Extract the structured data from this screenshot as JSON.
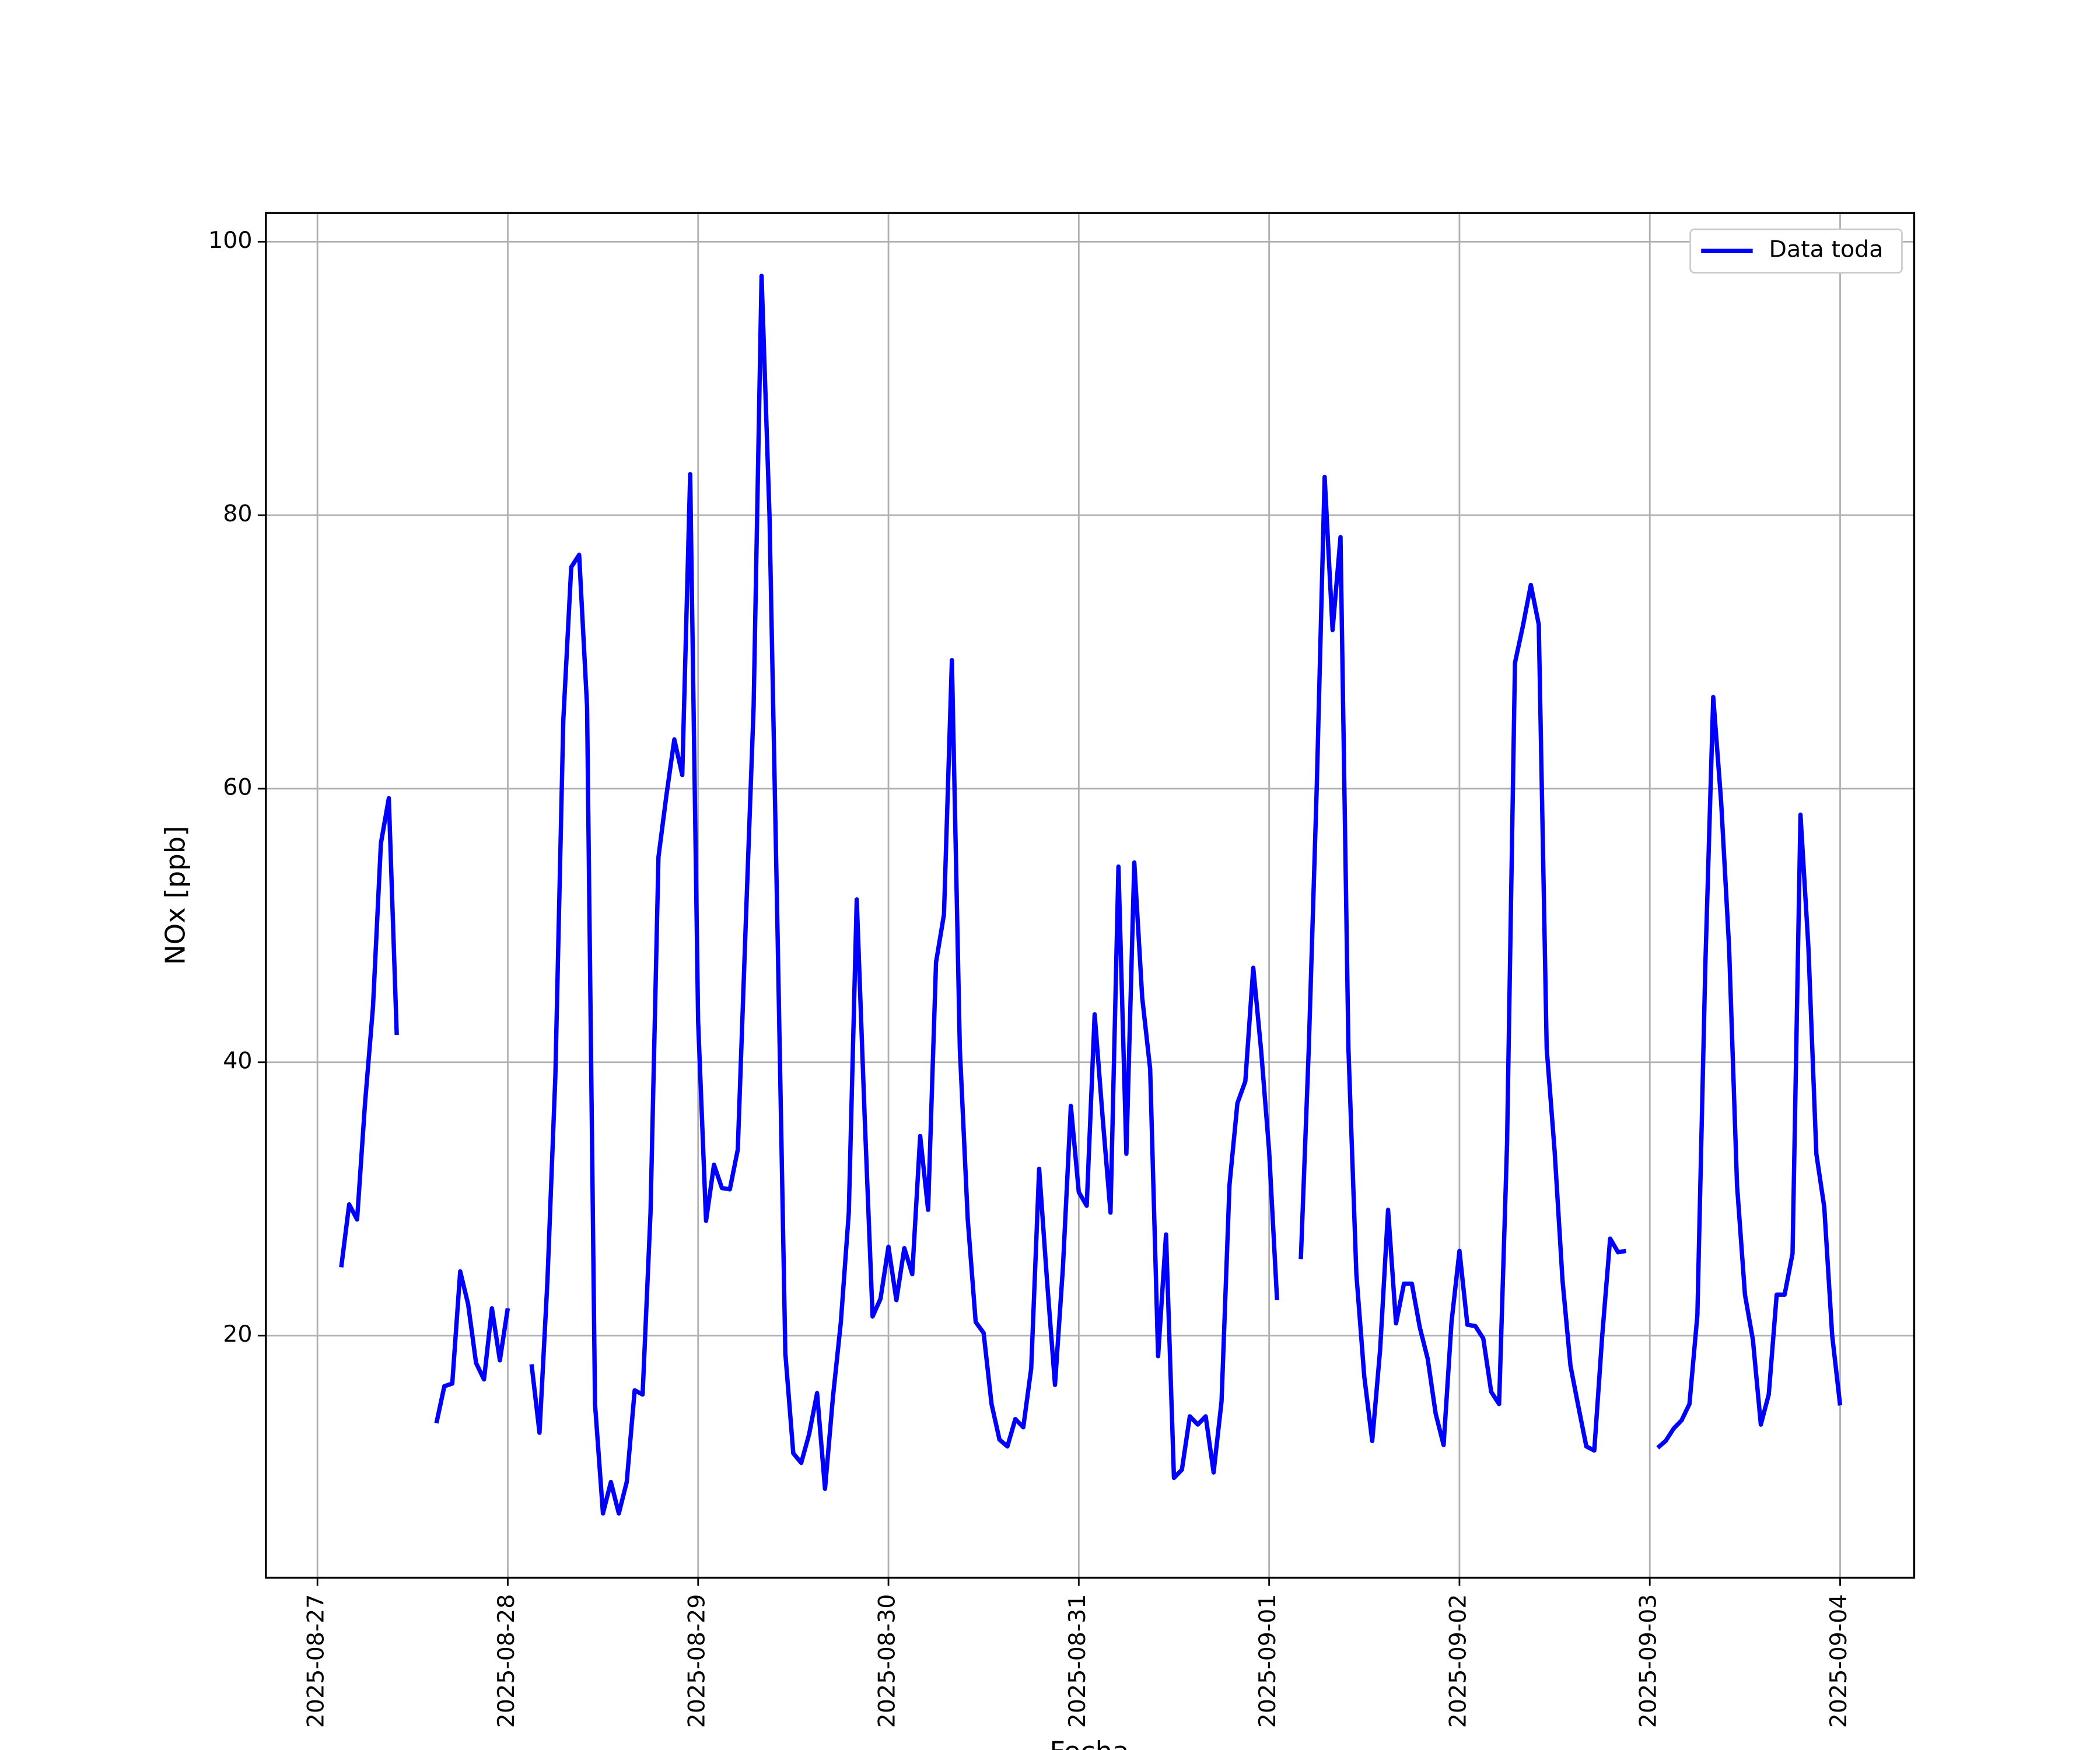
{
  "chart_data": {
    "type": "line",
    "xlabel": "Fecha",
    "ylabel": "NOx [ppb]",
    "xlim": [
      "2025-08-26 17:30",
      "2025-09-04 09:20"
    ],
    "xticks": [
      "2025-08-27",
      "2025-08-28",
      "2025-08-29",
      "2025-08-30",
      "2025-08-31",
      "2025-09-01",
      "2025-09-02",
      "2025-09-03",
      "2025-09-04"
    ],
    "ylim": [
      2.3,
      102.1
    ],
    "yticks": [
      20,
      40,
      60,
      80,
      100
    ],
    "grid": true,
    "legend": "upper right",
    "x": [
      "2025-08-27 03:00",
      "2025-08-27 04:00",
      "2025-08-27 05:00",
      "2025-08-27 06:00",
      "2025-08-27 07:00",
      "2025-08-27 08:00",
      "2025-08-27 09:00",
      "2025-08-27 10:00",
      "2025-08-27 11:00",
      "2025-08-27 12:00",
      "2025-08-27 13:00",
      "2025-08-27 14:00",
      "2025-08-27 15:00",
      "2025-08-27 16:00",
      "2025-08-27 17:00",
      "2025-08-27 18:00",
      "2025-08-27 19:00",
      "2025-08-27 20:00",
      "2025-08-27 21:00",
      "2025-08-27 22:00",
      "2025-08-27 23:00",
      "2025-08-28 00:00",
      "2025-08-28 01:00",
      "2025-08-28 02:00",
      "2025-08-28 03:00",
      "2025-08-28 04:00",
      "2025-08-28 05:00",
      "2025-08-28 06:00",
      "2025-08-28 07:00",
      "2025-08-28 08:00",
      "2025-08-28 09:00",
      "2025-08-28 10:00",
      "2025-08-28 11:00",
      "2025-08-28 12:00",
      "2025-08-28 13:00",
      "2025-08-28 14:00",
      "2025-08-28 15:00",
      "2025-08-28 16:00",
      "2025-08-28 17:00",
      "2025-08-28 18:00",
      "2025-08-28 19:00",
      "2025-08-28 20:00",
      "2025-08-28 21:00",
      "2025-08-28 22:00",
      "2025-08-28 23:00",
      "2025-08-29 00:00",
      "2025-08-29 01:00",
      "2025-08-29 02:00",
      "2025-08-29 03:00",
      "2025-08-29 04:00",
      "2025-08-29 05:00",
      "2025-08-29 06:00",
      "2025-08-29 07:00",
      "2025-08-29 08:00",
      "2025-08-29 09:00",
      "2025-08-29 10:00",
      "2025-08-29 11:00",
      "2025-08-29 12:00",
      "2025-08-29 13:00",
      "2025-08-29 14:00",
      "2025-08-29 15:00",
      "2025-08-29 16:00",
      "2025-08-29 17:00",
      "2025-08-29 18:00",
      "2025-08-29 19:00",
      "2025-08-29 20:00",
      "2025-08-29 21:00",
      "2025-08-29 22:00",
      "2025-08-29 23:00",
      "2025-08-30 00:00",
      "2025-08-30 01:00",
      "2025-08-30 02:00",
      "2025-08-30 03:00",
      "2025-08-30 04:00",
      "2025-08-30 05:00",
      "2025-08-30 06:00",
      "2025-08-30 07:00",
      "2025-08-30 08:00",
      "2025-08-30 09:00",
      "2025-08-30 10:00",
      "2025-08-30 11:00",
      "2025-08-30 12:00",
      "2025-08-30 13:00",
      "2025-08-30 14:00",
      "2025-08-30 15:00",
      "2025-08-30 16:00",
      "2025-08-30 17:00",
      "2025-08-30 18:00",
      "2025-08-30 19:00",
      "2025-08-30 20:00",
      "2025-08-30 21:00",
      "2025-08-30 22:00",
      "2025-08-30 23:00",
      "2025-08-31 00:00",
      "2025-08-31 01:00",
      "2025-08-31 02:00",
      "2025-08-31 03:00",
      "2025-08-31 04:00",
      "2025-08-31 05:00",
      "2025-08-31 06:00",
      "2025-08-31 07:00",
      "2025-08-31 08:00",
      "2025-08-31 09:00",
      "2025-08-31 10:00",
      "2025-08-31 11:00",
      "2025-08-31 12:00",
      "2025-08-31 13:00",
      "2025-08-31 14:00",
      "2025-08-31 15:00",
      "2025-08-31 16:00",
      "2025-08-31 17:00",
      "2025-08-31 18:00",
      "2025-08-31 19:00",
      "2025-08-31 20:00",
      "2025-08-31 21:00",
      "2025-08-31 22:00",
      "2025-08-31 23:00",
      "2025-09-01 00:00",
      "2025-09-01 01:00",
      "2025-09-01 02:00",
      "2025-09-01 03:00",
      "2025-09-01 04:00",
      "2025-09-01 05:00",
      "2025-09-01 06:00",
      "2025-09-01 07:00",
      "2025-09-01 08:00",
      "2025-09-01 09:00",
      "2025-09-01 10:00",
      "2025-09-01 11:00",
      "2025-09-01 12:00",
      "2025-09-01 13:00",
      "2025-09-01 14:00",
      "2025-09-01 15:00",
      "2025-09-01 16:00",
      "2025-09-01 17:00",
      "2025-09-01 18:00",
      "2025-09-01 19:00",
      "2025-09-01 20:00",
      "2025-09-01 21:00",
      "2025-09-01 22:00",
      "2025-09-01 23:00",
      "2025-09-02 00:00",
      "2025-09-02 01:00",
      "2025-09-02 02:00",
      "2025-09-02 03:00",
      "2025-09-02 04:00",
      "2025-09-02 05:00",
      "2025-09-02 06:00",
      "2025-09-02 07:00",
      "2025-09-02 08:00",
      "2025-09-02 09:00",
      "2025-09-02 10:00",
      "2025-09-02 11:00",
      "2025-09-02 12:00",
      "2025-09-02 13:00",
      "2025-09-02 14:00",
      "2025-09-02 15:00",
      "2025-09-02 16:00",
      "2025-09-02 17:00",
      "2025-09-02 18:00",
      "2025-09-02 19:00",
      "2025-09-02 20:00",
      "2025-09-02 21:00",
      "2025-09-02 22:00",
      "2025-09-02 23:00",
      "2025-09-03 00:00",
      "2025-09-03 01:00",
      "2025-09-03 02:00",
      "2025-09-03 03:00",
      "2025-09-03 04:00",
      "2025-09-03 05:00",
      "2025-09-03 06:00",
      "2025-09-03 07:00",
      "2025-09-03 08:00",
      "2025-09-03 09:00",
      "2025-09-03 10:00",
      "2025-09-03 11:00",
      "2025-09-03 12:00",
      "2025-09-03 13:00",
      "2025-09-03 14:00",
      "2025-09-03 15:00",
      "2025-09-03 16:00",
      "2025-09-03 17:00",
      "2025-09-03 18:00",
      "2025-09-03 19:00",
      "2025-09-03 20:00",
      "2025-09-03 21:00",
      "2025-09-03 22:00",
      "2025-09-03 23:00",
      "2025-09-04 00:00"
    ],
    "series": [
      {
        "name": "Data toda",
        "color": "#0000ff",
        "values": [
          25,
          29.6,
          28.5,
          37,
          44,
          56,
          59.3,
          42,
          null,
          null,
          null,
          null,
          13.6,
          16.3,
          16.5,
          24.7,
          22.3,
          18,
          16.8,
          22,
          18.2,
          22,
          null,
          null,
          17.9,
          12.9,
          24,
          39,
          65,
          76.2,
          77.1,
          66,
          15,
          7,
          9.3,
          7,
          9.3,
          16,
          15.7,
          29,
          55,
          59.5,
          63.6,
          61,
          83,
          43,
          28.4,
          32.5,
          30.8,
          30.7,
          33.6,
          50,
          66,
          97.5,
          80,
          50,
          18.7,
          11.4,
          10.7,
          12.8,
          15.8,
          8.8,
          15.5,
          21,
          29,
          51.9,
          36,
          21.4,
          22.7,
          26.5,
          22.6,
          26.4,
          24.5,
          34.6,
          29.2,
          47.3,
          50.8,
          69.4,
          41,
          28.5,
          21,
          20.2,
          15,
          12.4,
          11.9,
          13.9,
          13.3,
          17.6,
          32.2,
          24,
          16.4,
          25,
          36.8,
          30.5,
          29.5,
          43.5,
          36,
          29,
          54.3,
          33.3,
          54.6,
          44.7,
          39.5,
          18.5,
          27.4,
          9.6,
          10.2,
          14.1,
          13.5,
          14.1,
          10,
          15.2,
          31,
          37,
          38.6,
          46.9,
          40.8,
          33.5,
          22.6,
          null,
          null,
          25.6,
          41,
          60,
          82.8,
          71.6,
          78.4,
          41,
          24.5,
          17,
          12.3,
          19,
          29.2,
          20.9,
          23.8,
          23.8,
          20.6,
          18.3,
          14.3,
          12,
          21,
          26.2,
          20.8,
          20.7,
          19.8,
          15.9,
          15,
          34,
          69.2,
          71.9,
          74.9,
          72,
          41,
          33.5,
          24,
          17.8,
          14.8,
          11.9,
          11.6,
          20,
          27.1,
          26.1,
          26.2,
          null,
          null,
          null,
          11.8,
          12.3,
          13.2,
          13.8,
          15,
          21.5,
          47,
          66.7,
          59,
          48.4,
          31,
          23,
          19.7,
          13.5,
          15.7,
          23,
          23,
          26,
          58.1,
          48.4,
          33.3,
          29.4,
          20,
          14.9
        ]
      }
    ]
  }
}
